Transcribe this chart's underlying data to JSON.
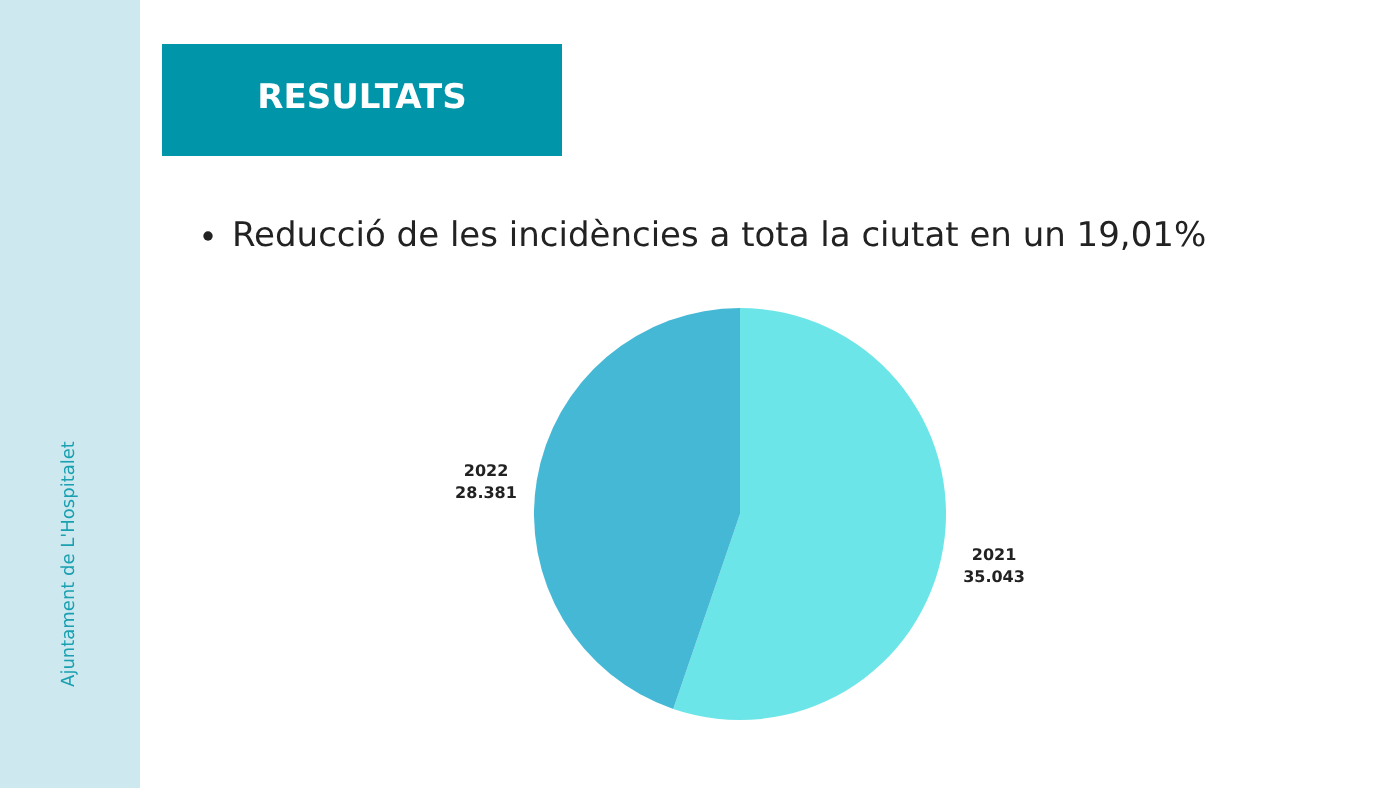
{
  "chart_data": {
    "type": "pie",
    "title": "RESULTATS",
    "annotations": [
      "Reducció de les incidències a tota la ciutat en un 19,01%",
      "Ajuntament de L'Hospitalet"
    ],
    "categories": [
      "2021",
      "2022"
    ],
    "values": [
      35043,
      28381
    ],
    "value_labels": [
      "35.043",
      "28.381"
    ],
    "colors": [
      "#6ce5e8",
      "#45b8d6"
    ]
  }
}
